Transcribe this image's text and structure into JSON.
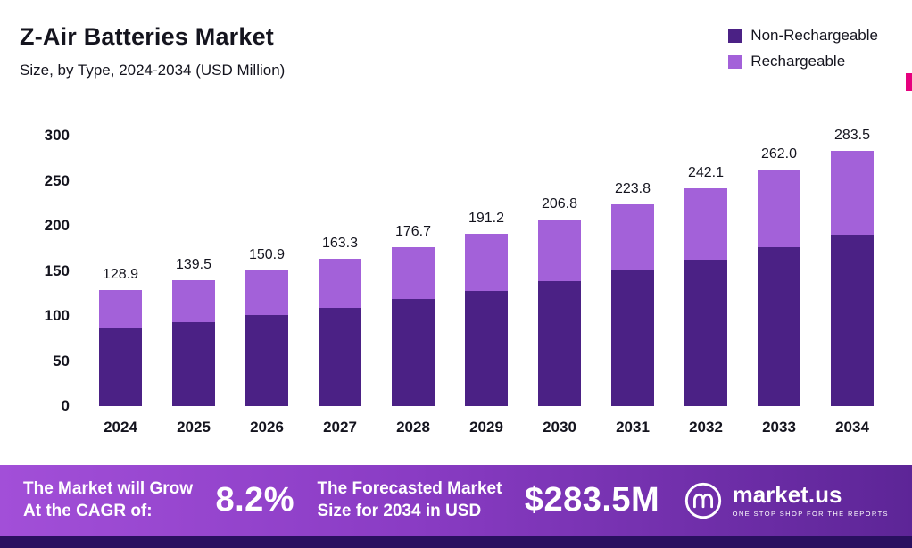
{
  "header": {
    "title": "Z-Air Batteries Market",
    "subtitle": "Size, by Type, 2024-2034 (USD Million)"
  },
  "legend": [
    {
      "label": "Non-Rechargeable",
      "color": "#4b2185"
    },
    {
      "label": "Rechargeable",
      "color": "#a361d9"
    }
  ],
  "chart_data": {
    "type": "bar",
    "stacked": true,
    "title": "Z-Air Batteries Market",
    "subtitle": "Size, by Type, 2024-2034 (USD Million)",
    "xlabel": "",
    "ylabel": "",
    "ylim": [
      0,
      300
    ],
    "yticks": [
      0,
      50,
      100,
      150,
      200,
      250,
      300
    ],
    "grid": false,
    "legend_position": "top-right",
    "categories": [
      "2024",
      "2025",
      "2026",
      "2027",
      "2028",
      "2029",
      "2030",
      "2031",
      "2032",
      "2033",
      "2034"
    ],
    "series": [
      {
        "name": "Non-Rechargeable",
        "color": "#4b2185",
        "values": [
          86.4,
          93.5,
          101.1,
          109.4,
          118.4,
          128.1,
          138.6,
          151.0,
          162.2,
          176.0,
          190.0
        ]
      },
      {
        "name": "Rechargeable",
        "color": "#a361d9",
        "values": [
          42.5,
          46.0,
          49.8,
          53.9,
          58.3,
          63.1,
          68.2,
          72.8,
          79.9,
          86.0,
          93.5
        ]
      }
    ],
    "totals": [
      "128.9",
      "139.5",
      "150.9",
      "163.3",
      "176.7",
      "191.2",
      "206.8",
      "223.8",
      "242.1",
      "262.0",
      "283.5"
    ]
  },
  "banner": {
    "cagr_label_line1": "The Market will Grow",
    "cagr_label_line2": "At the CAGR of:",
    "cagr_value": "8.2%",
    "forecast_label_line1": "The Forecasted Market",
    "forecast_label_line2": "Size for 2034 in USD",
    "forecast_value": "$283.5M",
    "brand": "market.us",
    "brand_tagline": "ONE STOP SHOP FOR THE REPORTS"
  },
  "colors": {
    "non_rechargeable": "#4b2185",
    "rechargeable": "#a361d9",
    "banner_gradient_start": "#a24fd8",
    "banner_gradient_end": "#5d2597",
    "bottom_strip": "#2a1060",
    "edge_accent": "#e6007e",
    "text": "#14141e"
  }
}
